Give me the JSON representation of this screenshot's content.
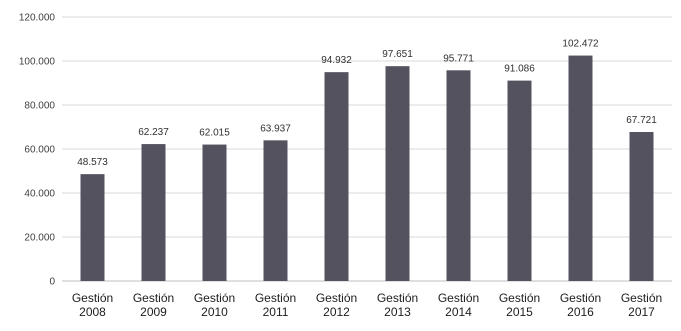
{
  "chart_data": {
    "type": "bar",
    "categories": [
      [
        "Gestión",
        "2008"
      ],
      [
        "Gestión",
        "2009"
      ],
      [
        "Gestión",
        "2010"
      ],
      [
        "Gestión",
        "2011"
      ],
      [
        "Gestión",
        "2012"
      ],
      [
        "Gestión",
        "2013"
      ],
      [
        "Gestión",
        "2014"
      ],
      [
        "Gestión",
        "2015"
      ],
      [
        "Gestión",
        "2016"
      ],
      [
        "Gestión",
        "2017"
      ]
    ],
    "values": [
      48573,
      62237,
      62015,
      63937,
      94932,
      97651,
      95771,
      91086,
      102472,
      67721
    ],
    "value_labels": [
      "48.573",
      "62.237",
      "62.015",
      "63.937",
      "94.932",
      "97.651",
      "95.771",
      "91.086",
      "102.472",
      "67.721"
    ],
    "ylim": [
      0,
      120000
    ],
    "yticks": [
      0,
      20000,
      40000,
      60000,
      80000,
      100000,
      120000
    ],
    "ytick_labels": [
      "0",
      "20.000",
      "40.000",
      "60.000",
      "80.000",
      "100.000",
      "120.000"
    ],
    "grid": true,
    "legend": "none",
    "colors": {
      "bar": "#55525f",
      "grid": "#d9d9d9",
      "axis": "#bfbfbf"
    }
  }
}
